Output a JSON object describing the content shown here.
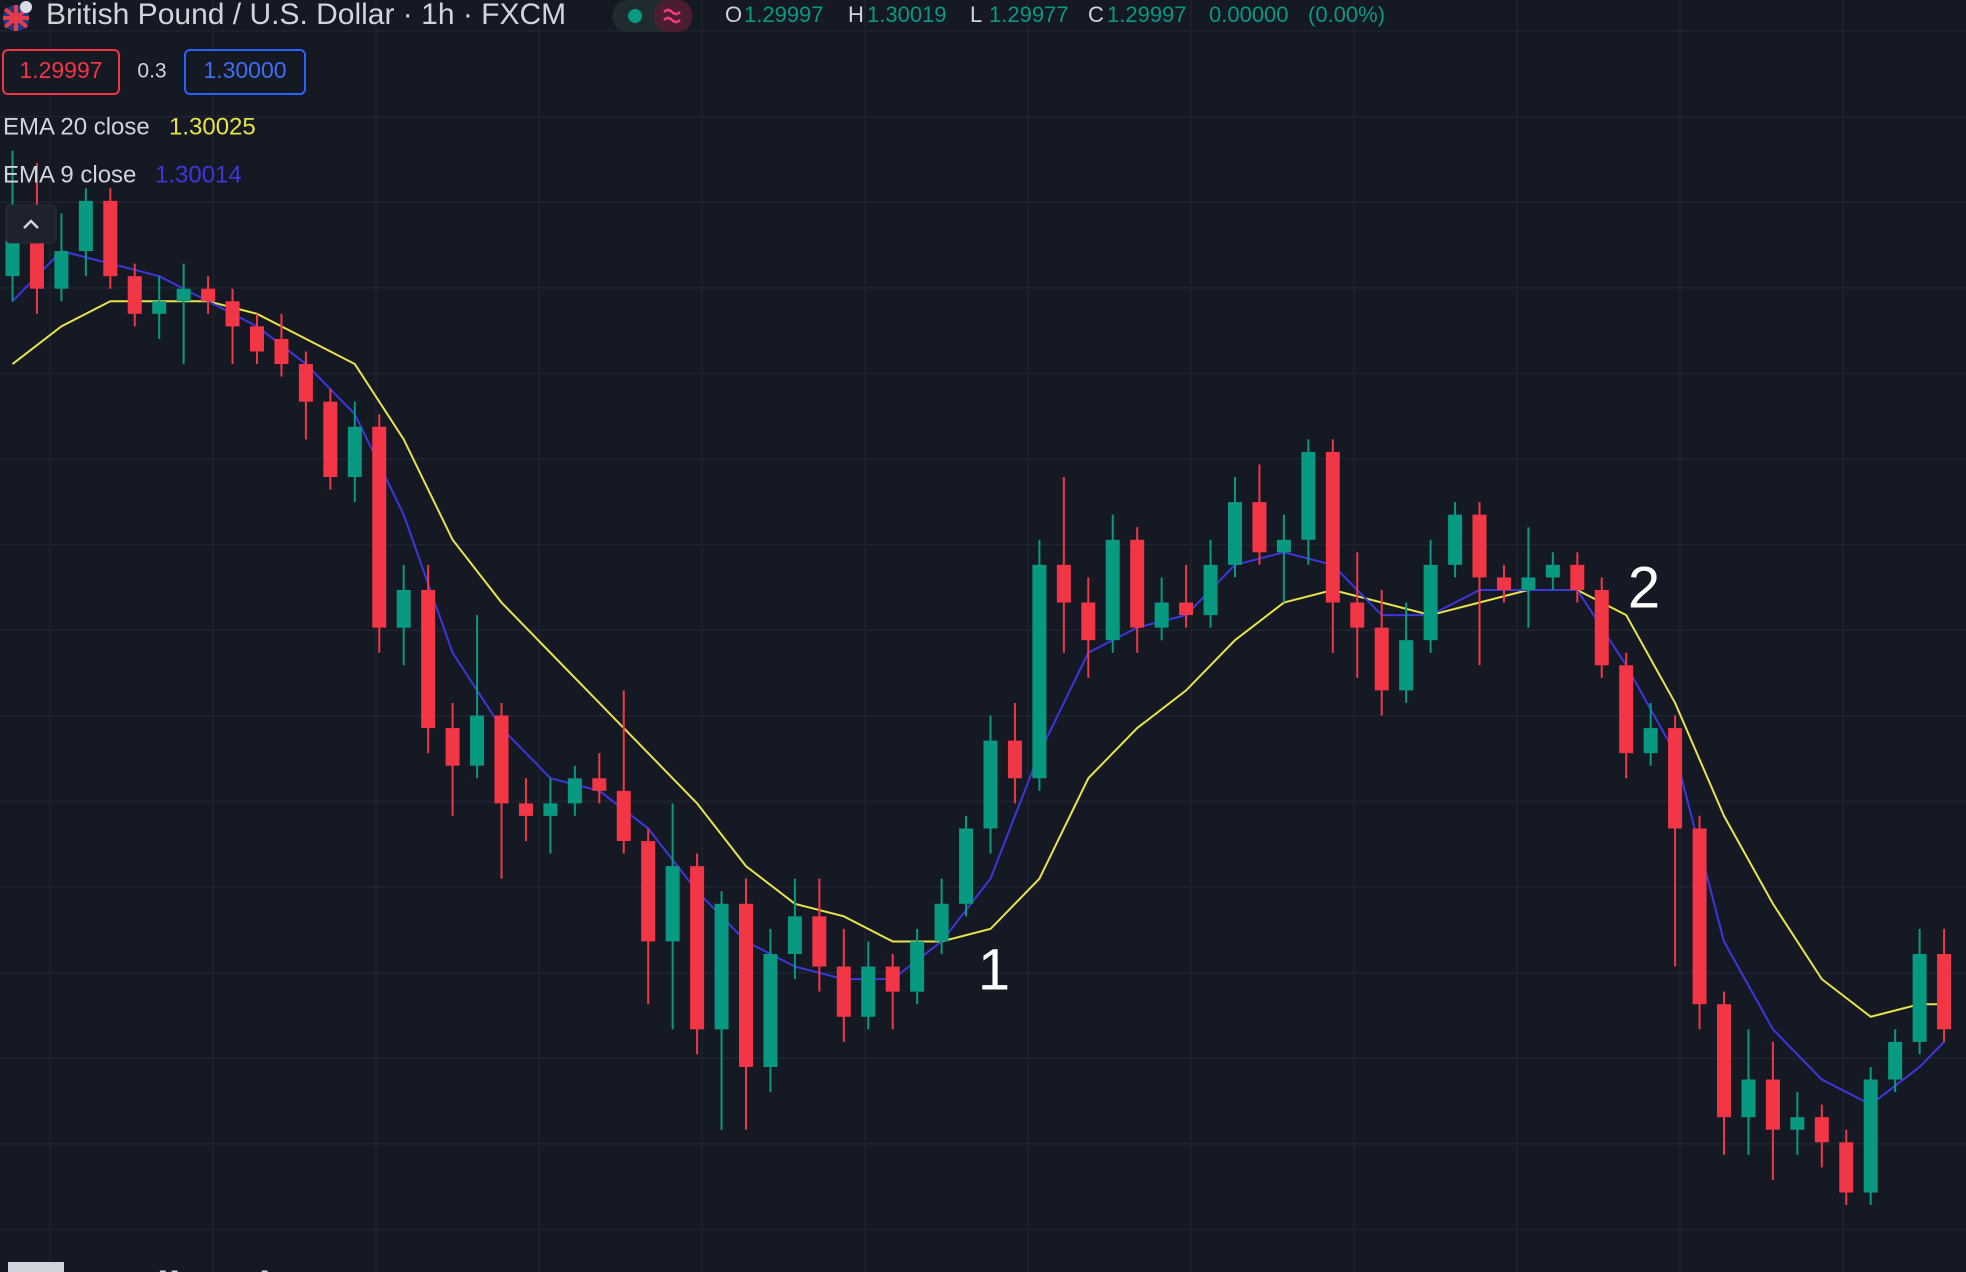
{
  "chart_data": {
    "type": "candlestick",
    "title": "British Pound / U.S. Dollar · 1h · FXCM",
    "ohlc_legend": [
      {
        "letter": "O",
        "value": 1.29997
      },
      {
        "letter": "H",
        "value": 1.30019
      },
      {
        "letter": "L",
        "value": 1.29977
      },
      {
        "letter": "C",
        "value": 1.29997
      }
    ],
    "change": {
      "value": 0,
      "label": "0.00000"
    },
    "change_percent": {
      "value": 0,
      "label": "(0.00%)"
    },
    "bid": 1.29997,
    "spread": 0.3,
    "ask": {
      "value": 1.3,
      "label": "1.30000"
    },
    "up_color": "#089981",
    "down_color": "#f23645",
    "ylim": [
      1.2971,
      1.3123
    ],
    "open": [
      1.309,
      1.3096,
      1.30885,
      1.3093,
      1.3099,
      1.309,
      1.30855,
      1.3087,
      1.30885,
      1.3087,
      1.3084,
      1.30825,
      1.30795,
      1.3075,
      1.3066,
      1.3072,
      1.3048,
      1.30525,
      1.3036,
      1.30315,
      1.30375,
      1.3027,
      1.30255,
      1.3027,
      1.303,
      1.30285,
      1.30225,
      1.30105,
      1.30195,
      1.3,
      1.3015,
      1.29955,
      1.3009,
      1.30135,
      1.30075,
      1.30015,
      1.30075,
      1.30045,
      1.30105,
      1.3015,
      1.3024,
      1.30345,
      1.303,
      1.30555,
      1.3051,
      1.30465,
      1.30585,
      1.3048,
      1.3051,
      1.30495,
      1.30555,
      1.3063,
      1.3057,
      1.30585,
      1.3069,
      1.3051,
      1.3048,
      1.30405,
      1.30465,
      1.30555,
      1.30615,
      1.3054,
      1.30525,
      1.3054,
      1.30555,
      1.30525,
      1.30435,
      1.3033,
      1.3036,
      1.3024,
      1.3003,
      1.29895,
      1.2994,
      1.2988,
      1.29895,
      1.29865,
      1.29805,
      1.2994,
      1.29985,
      1.3009
    ],
    "high": [
      1.3105,
      1.31035,
      1.30975,
      1.31005,
      1.31005,
      1.30915,
      1.309,
      1.30915,
      1.309,
      1.30885,
      1.30855,
      1.30855,
      1.3081,
      1.30765,
      1.3075,
      1.30735,
      1.30555,
      1.30555,
      1.3039,
      1.30495,
      1.3039,
      1.303,
      1.303,
      1.30315,
      1.3033,
      1.30405,
      1.3024,
      1.3027,
      1.3021,
      1.30165,
      1.3018,
      1.3012,
      1.3018,
      1.3018,
      1.3012,
      1.30105,
      1.3009,
      1.3012,
      1.3018,
      1.30255,
      1.30375,
      1.3039,
      1.30585,
      1.3066,
      1.3054,
      1.30615,
      1.306,
      1.3054,
      1.30555,
      1.30585,
      1.3066,
      1.30675,
      1.30615,
      1.30705,
      1.30705,
      1.3057,
      1.30525,
      1.3051,
      1.30585,
      1.3063,
      1.3063,
      1.30555,
      1.306,
      1.3057,
      1.3057,
      1.3054,
      1.3045,
      1.3039,
      1.30375,
      1.30255,
      1.30045,
      1.3,
      1.29985,
      1.29925,
      1.2991,
      1.2988,
      1.29955,
      1.3,
      1.3012,
      1.3012
    ],
    "low": [
      1.3087,
      1.30855,
      1.3087,
      1.309,
      1.30885,
      1.3084,
      1.30825,
      1.30795,
      1.30855,
      1.30795,
      1.30795,
      1.3078,
      1.30705,
      1.30645,
      1.3063,
      1.3045,
      1.30435,
      1.3033,
      1.30255,
      1.303,
      1.3018,
      1.30225,
      1.3021,
      1.30255,
      1.3027,
      1.3021,
      1.3003,
      1.3,
      1.2997,
      1.2988,
      1.2988,
      1.29925,
      1.3006,
      1.30045,
      1.29985,
      1.3,
      1.3,
      1.3003,
      1.3009,
      1.30135,
      1.3021,
      1.3027,
      1.30285,
      1.3045,
      1.3042,
      1.3045,
      1.3045,
      1.30465,
      1.3048,
      1.3048,
      1.3054,
      1.30555,
      1.3051,
      1.30555,
      1.3045,
      1.3042,
      1.30375,
      1.3039,
      1.3045,
      1.3054,
      1.30435,
      1.3051,
      1.3048,
      1.30525,
      1.3051,
      1.3042,
      1.303,
      1.30315,
      1.30075,
      1.3,
      1.2985,
      1.2985,
      1.2982,
      1.2985,
      1.29835,
      1.2979,
      1.2979,
      1.29925,
      1.2997,
      1.29985
    ],
    "close": [
      1.3096,
      1.30885,
      1.3093,
      1.3099,
      1.309,
      1.30855,
      1.3087,
      1.30885,
      1.3087,
      1.3084,
      1.3081,
      1.30795,
      1.3075,
      1.3066,
      1.3072,
      1.3048,
      1.30525,
      1.3036,
      1.30315,
      1.30375,
      1.3027,
      1.30255,
      1.3027,
      1.303,
      1.30285,
      1.30225,
      1.30105,
      1.30195,
      1.3,
      1.3015,
      1.29955,
      1.3009,
      1.30135,
      1.30075,
      1.30015,
      1.30075,
      1.30045,
      1.30105,
      1.3015,
      1.3024,
      1.30345,
      1.303,
      1.30555,
      1.3051,
      1.30465,
      1.30585,
      1.3048,
      1.3051,
      1.30495,
      1.30555,
      1.3063,
      1.3057,
      1.30585,
      1.3069,
      1.3051,
      1.3048,
      1.30405,
      1.30465,
      1.30555,
      1.30615,
      1.3054,
      1.30525,
      1.3054,
      1.30555,
      1.30525,
      1.30435,
      1.3033,
      1.3036,
      1.3024,
      1.3003,
      1.29895,
      1.2994,
      1.2988,
      1.29895,
      1.29865,
      1.29805,
      1.2994,
      1.29985,
      1.3009,
      1.3
    ],
    "series": [
      {
        "name": "EMA 20 close",
        "color": "#e9e24a",
        "last_value": 1.30025,
        "x": [
          0,
          2,
          4,
          6,
          8,
          10,
          12,
          14,
          16,
          18,
          20,
          22,
          24,
          26,
          28,
          30,
          32,
          34,
          36,
          38,
          40,
          42,
          44,
          46,
          48,
          50,
          52,
          54,
          56,
          58,
          60,
          62,
          64,
          66,
          68,
          70,
          72,
          74,
          76,
          78,
          79
        ],
        "values": [
          1.30795,
          1.3084,
          1.3087,
          1.3087,
          1.3087,
          1.30855,
          1.30825,
          1.30795,
          1.30705,
          1.30585,
          1.3051,
          1.3045,
          1.3039,
          1.3033,
          1.3027,
          1.30195,
          1.3015,
          1.30135,
          1.30105,
          1.30105,
          1.3012,
          1.3018,
          1.303,
          1.3036,
          1.30405,
          1.30465,
          1.3051,
          1.30525,
          1.3051,
          1.30495,
          1.3051,
          1.30525,
          1.30525,
          1.30495,
          1.3039,
          1.30255,
          1.3015,
          1.3006,
          1.30015,
          1.3003,
          1.3003
        ]
      },
      {
        "name": "EMA 9 close",
        "color": "#3b37dc",
        "last_value": 1.30014,
        "x": [
          0,
          2,
          4,
          6,
          8,
          10,
          12,
          14,
          16,
          18,
          20,
          22,
          24,
          26,
          28,
          30,
          32,
          34,
          36,
          38,
          40,
          42,
          44,
          46,
          48,
          50,
          52,
          54,
          56,
          58,
          60,
          62,
          64,
          66,
          68,
          70,
          72,
          74,
          76,
          78,
          79
        ],
        "values": [
          1.3087,
          1.3093,
          1.30915,
          1.309,
          1.3087,
          1.3084,
          1.30795,
          1.30735,
          1.30615,
          1.3045,
          1.3036,
          1.303,
          1.30285,
          1.3024,
          1.30165,
          1.30105,
          1.30075,
          1.3006,
          1.3006,
          1.30105,
          1.3018,
          1.3033,
          1.3045,
          1.3048,
          1.30495,
          1.30555,
          1.3057,
          1.30555,
          1.30495,
          1.30495,
          1.30525,
          1.30525,
          1.30525,
          1.30435,
          1.3033,
          1.30105,
          1.3,
          1.2994,
          1.2991,
          1.29955,
          1.29985
        ]
      }
    ],
    "annotations": [
      {
        "text": "1"
      },
      {
        "text": "2"
      }
    ],
    "watermark": "TradingView"
  }
}
